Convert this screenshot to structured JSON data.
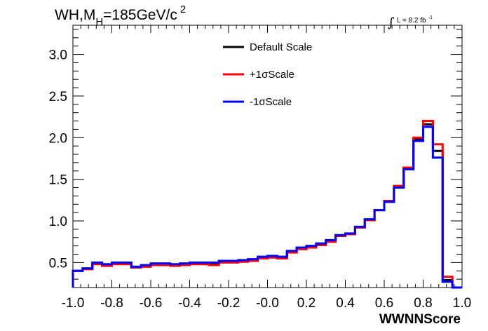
{
  "chart_data": {
    "type": "line",
    "title": {
      "prefix": "WH,M",
      "subscript": "H",
      "middle": "=185GeV/c",
      "superscript": "2"
    },
    "luminosity": {
      "integral_symbol": "∫",
      "text": "L = 8.2 fb",
      "superscript": "-1"
    },
    "xlabel": "WWNNScore",
    "ylabel": "",
    "xlim": [
      -1.0,
      1.0
    ],
    "ylim": [
      0.2,
      3.35
    ],
    "x_ticks": [
      -1.0,
      -0.8,
      -0.6,
      -0.4,
      -0.2,
      0.0,
      0.2,
      0.4,
      0.6,
      0.8,
      1.0
    ],
    "x_tick_labels": [
      "-1.0",
      "-0.8",
      "-0.6",
      "-0.4",
      "-0.2",
      "-0.0",
      "0.2",
      "0.4",
      "0.6",
      "0.8",
      "1.0"
    ],
    "y_ticks": [
      0.5,
      1.0,
      1.5,
      2.0,
      2.5,
      3.0
    ],
    "y_tick_labels": [
      "0.5",
      "1.0",
      "1.5",
      "2.0",
      "2.5",
      "3.0"
    ],
    "legend_position": "top-center",
    "bin_edges": [
      -1.0,
      -0.95,
      -0.9,
      -0.85,
      -0.8,
      -0.75,
      -0.7,
      -0.65,
      -0.6,
      -0.55,
      -0.5,
      -0.45,
      -0.4,
      -0.35,
      -0.3,
      -0.25,
      -0.2,
      -0.15,
      -0.1,
      -0.05,
      0.0,
      0.05,
      0.1,
      0.15,
      0.2,
      0.25,
      0.3,
      0.35,
      0.4,
      0.45,
      0.5,
      0.55,
      0.6,
      0.65,
      0.7,
      0.75,
      0.8,
      0.85,
      0.9,
      0.95,
      1.0
    ],
    "series": [
      {
        "name": "Default Scale",
        "color": "#000000",
        "values": [
          0.4,
          0.43,
          0.49,
          0.47,
          0.49,
          0.49,
          0.45,
          0.46,
          0.48,
          0.48,
          0.47,
          0.48,
          0.49,
          0.49,
          0.49,
          0.51,
          0.51,
          0.52,
          0.53,
          0.56,
          0.57,
          0.56,
          0.63,
          0.67,
          0.69,
          0.72,
          0.76,
          0.82,
          0.84,
          0.92,
          1.01,
          1.13,
          1.23,
          1.41,
          1.63,
          1.98,
          2.16,
          1.84,
          0.29,
          0.2
        ]
      },
      {
        "name": "+1σScale",
        "color": "#ff0000",
        "values": [
          0.4,
          0.42,
          0.48,
          0.46,
          0.48,
          0.48,
          0.44,
          0.45,
          0.47,
          0.47,
          0.46,
          0.47,
          0.48,
          0.48,
          0.47,
          0.5,
          0.5,
          0.51,
          0.52,
          0.55,
          0.56,
          0.55,
          0.62,
          0.66,
          0.68,
          0.71,
          0.75,
          0.82,
          0.84,
          0.92,
          1.01,
          1.13,
          1.24,
          1.42,
          1.64,
          2.0,
          2.2,
          1.92,
          0.33,
          0.2
        ]
      },
      {
        "name": "-1σScale",
        "color": "#0000ff",
        "values": [
          0.4,
          0.43,
          0.5,
          0.48,
          0.5,
          0.5,
          0.45,
          0.47,
          0.49,
          0.49,
          0.48,
          0.49,
          0.5,
          0.5,
          0.5,
          0.52,
          0.52,
          0.53,
          0.54,
          0.57,
          0.58,
          0.57,
          0.64,
          0.68,
          0.7,
          0.73,
          0.77,
          0.83,
          0.85,
          0.93,
          1.02,
          1.13,
          1.23,
          1.4,
          1.62,
          1.96,
          2.13,
          1.76,
          0.27,
          0.2
        ]
      }
    ]
  }
}
